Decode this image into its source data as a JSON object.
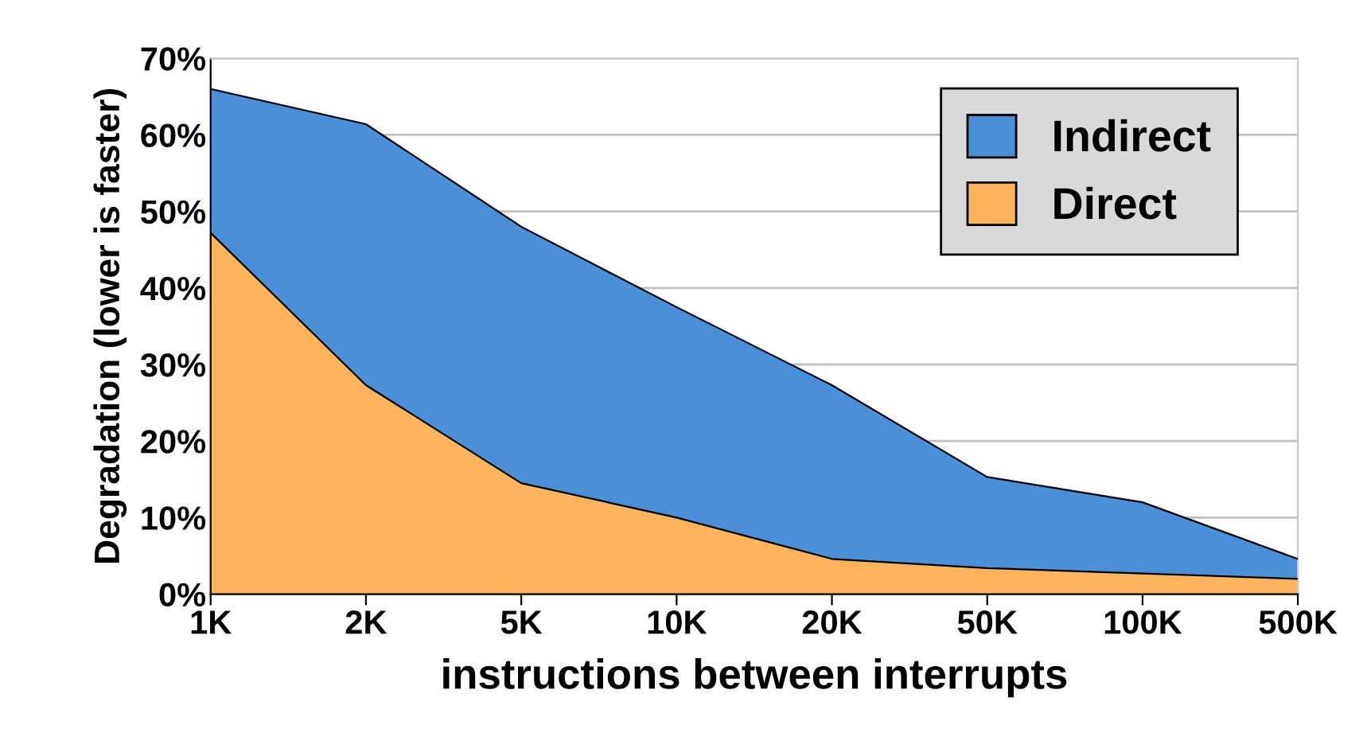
{
  "chart_data": {
    "type": "area",
    "stacked": true,
    "xlabel": "instructions between interrupts",
    "ylabel": "Degradation (lower is faster)",
    "categories": [
      "1K",
      "2K",
      "5K",
      "10K",
      "20K",
      "50K",
      "100K",
      "500K"
    ],
    "series": [
      {
        "name": "Direct",
        "color": "#fdb45a",
        "values": [
          47.2,
          27.3,
          14.5,
          10.0,
          4.6,
          3.4,
          2.7,
          2.0
        ]
      },
      {
        "name": "Indirect",
        "color": "#4a90d9",
        "values": [
          18.8,
          34.1,
          33.5,
          27.5,
          22.7,
          11.9,
          9.3,
          2.6
        ]
      }
    ],
    "ylim": [
      0,
      70
    ],
    "yticks": [
      {
        "value": 0,
        "label": "0%"
      },
      {
        "value": 10,
        "label": "10%"
      },
      {
        "value": 20,
        "label": "20%"
      },
      {
        "value": 30,
        "label": "30%"
      },
      {
        "value": 40,
        "label": "40%"
      },
      {
        "value": 50,
        "label": "50%"
      },
      {
        "value": 60,
        "label": "60%"
      },
      {
        "value": 70,
        "label": "70%"
      }
    ],
    "grid": "y",
    "legend": "top right"
  }
}
